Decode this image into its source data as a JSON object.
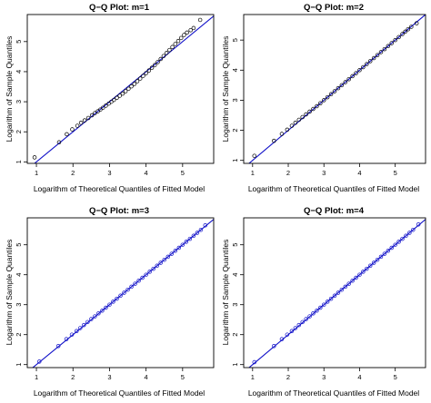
{
  "chart_data": [
    {
      "type": "scatter",
      "title": "Q−Q Plot: m=1",
      "xlabel": "Logarithm of  Theoretical Quantiles of Fitted Model",
      "ylabel": "Logarithm of  Sample Quantiles",
      "xlim": [
        0.75,
        5.85
      ],
      "ylim": [
        0.95,
        5.9
      ],
      "xticks": [
        "1",
        "2",
        "3",
        "4",
        "5"
      ],
      "yticks": [
        "1",
        "2",
        "3",
        "4",
        "5"
      ],
      "reference_line": {
        "intercept": 0,
        "slope": 1,
        "color": "#1010c8"
      },
      "point_color": "#000000",
      "points": [
        [
          0.95,
          1.15
        ],
        [
          1.62,
          1.65
        ],
        [
          1.83,
          1.92
        ],
        [
          1.98,
          2.08
        ],
        [
          2.12,
          2.2
        ],
        [
          2.22,
          2.3
        ],
        [
          2.32,
          2.38
        ],
        [
          2.42,
          2.46
        ],
        [
          2.52,
          2.55
        ],
        [
          2.6,
          2.62
        ],
        [
          2.68,
          2.68
        ],
        [
          2.75,
          2.74
        ],
        [
          2.82,
          2.8
        ],
        [
          2.9,
          2.87
        ],
        [
          2.98,
          2.94
        ],
        [
          3.05,
          3.0
        ],
        [
          3.12,
          3.06
        ],
        [
          3.2,
          3.13
        ],
        [
          3.28,
          3.2
        ],
        [
          3.36,
          3.27
        ],
        [
          3.44,
          3.35
        ],
        [
          3.52,
          3.43
        ],
        [
          3.6,
          3.51
        ],
        [
          3.68,
          3.59
        ],
        [
          3.76,
          3.68
        ],
        [
          3.84,
          3.77
        ],
        [
          3.92,
          3.86
        ],
        [
          4.0,
          3.95
        ],
        [
          4.08,
          4.04
        ],
        [
          4.16,
          4.13
        ],
        [
          4.24,
          4.22
        ],
        [
          4.32,
          4.32
        ],
        [
          4.4,
          4.42
        ],
        [
          4.48,
          4.52
        ],
        [
          4.56,
          4.62
        ],
        [
          4.64,
          4.72
        ],
        [
          4.72,
          4.82
        ],
        [
          4.8,
          4.92
        ],
        [
          4.88,
          5.02
        ],
        [
          4.96,
          5.12
        ],
        [
          5.04,
          5.22
        ],
        [
          5.12,
          5.3
        ],
        [
          5.22,
          5.38
        ],
        [
          5.3,
          5.45
        ],
        [
          5.48,
          5.72
        ]
      ]
    },
    {
      "type": "scatter",
      "title": "Q−Q Plot: m=2",
      "xlabel": "Logarithm of  Theoretical Quantiles of Fitted Model",
      "ylabel": "Logarithm of  Sample Quantiles",
      "xlim": [
        0.75,
        5.85
      ],
      "ylim": [
        0.9,
        5.85
      ],
      "xticks": [
        "1",
        "2",
        "3",
        "4",
        "5"
      ],
      "yticks": [
        "1",
        "2",
        "3",
        "4",
        "5"
      ],
      "reference_line": {
        "intercept": 0,
        "slope": 1,
        "color": "#1010c8"
      },
      "point_color": "#000000",
      "points": [
        [
          1.05,
          1.15
        ],
        [
          1.6,
          1.65
        ],
        [
          1.82,
          1.88
        ],
        [
          1.97,
          2.02
        ],
        [
          2.1,
          2.15
        ],
        [
          2.2,
          2.25
        ],
        [
          2.3,
          2.35
        ],
        [
          2.4,
          2.44
        ],
        [
          2.5,
          2.53
        ],
        [
          2.6,
          2.62
        ],
        [
          2.7,
          2.71
        ],
        [
          2.8,
          2.8
        ],
        [
          2.9,
          2.9
        ],
        [
          3.0,
          3.0
        ],
        [
          3.1,
          3.1
        ],
        [
          3.2,
          3.2
        ],
        [
          3.3,
          3.3
        ],
        [
          3.4,
          3.4
        ],
        [
          3.5,
          3.5
        ],
        [
          3.6,
          3.6
        ],
        [
          3.7,
          3.7
        ],
        [
          3.8,
          3.8
        ],
        [
          3.9,
          3.9
        ],
        [
          4.0,
          4.0
        ],
        [
          4.1,
          4.1
        ],
        [
          4.2,
          4.2
        ],
        [
          4.3,
          4.3
        ],
        [
          4.4,
          4.4
        ],
        [
          4.5,
          4.5
        ],
        [
          4.6,
          4.6
        ],
        [
          4.7,
          4.7
        ],
        [
          4.8,
          4.8
        ],
        [
          4.9,
          4.9
        ],
        [
          5.0,
          5.0
        ],
        [
          5.1,
          5.1
        ],
        [
          5.2,
          5.2
        ],
        [
          5.28,
          5.28
        ],
        [
          5.36,
          5.36
        ],
        [
          5.45,
          5.44
        ],
        [
          5.6,
          5.56
        ]
      ]
    },
    {
      "type": "scatter",
      "title": "Q−Q Plot: m=3",
      "xlabel": "Logarithm of Theoretical Quantiles of Fitted Model",
      "ylabel": "Logarithm of Sample Quantiles",
      "xlim": [
        0.75,
        5.85
      ],
      "ylim": [
        0.9,
        5.9
      ],
      "xticks": [
        "1",
        "2",
        "3",
        "4",
        "5"
      ],
      "yticks": [
        "1",
        "2",
        "3",
        "4",
        "5"
      ],
      "reference_line": {
        "intercept": 0,
        "slope": 1,
        "color": "#1010c8"
      },
      "point_color": "#1010c8",
      "points": [
        [
          1.08,
          1.1
        ],
        [
          1.6,
          1.62
        ],
        [
          1.82,
          1.85
        ],
        [
          1.97,
          2.0
        ],
        [
          2.1,
          2.12
        ],
        [
          2.2,
          2.22
        ],
        [
          2.3,
          2.32
        ],
        [
          2.4,
          2.42
        ],
        [
          2.5,
          2.52
        ],
        [
          2.6,
          2.61
        ],
        [
          2.7,
          2.71
        ],
        [
          2.8,
          2.8
        ],
        [
          2.9,
          2.9
        ],
        [
          3.0,
          3.0
        ],
        [
          3.1,
          3.1
        ],
        [
          3.2,
          3.2
        ],
        [
          3.3,
          3.3
        ],
        [
          3.4,
          3.4
        ],
        [
          3.5,
          3.5
        ],
        [
          3.6,
          3.6
        ],
        [
          3.7,
          3.7
        ],
        [
          3.8,
          3.8
        ],
        [
          3.9,
          3.9
        ],
        [
          4.0,
          4.0
        ],
        [
          4.1,
          4.1
        ],
        [
          4.2,
          4.2
        ],
        [
          4.3,
          4.3
        ],
        [
          4.4,
          4.4
        ],
        [
          4.5,
          4.5
        ],
        [
          4.6,
          4.6
        ],
        [
          4.7,
          4.7
        ],
        [
          4.8,
          4.8
        ],
        [
          4.9,
          4.9
        ],
        [
          5.0,
          5.0
        ],
        [
          5.1,
          5.1
        ],
        [
          5.2,
          5.2
        ],
        [
          5.3,
          5.3
        ],
        [
          5.4,
          5.4
        ],
        [
          5.5,
          5.5
        ],
        [
          5.62,
          5.65
        ]
      ]
    },
    {
      "type": "scatter",
      "title": "Q−Q Plot: m=4",
      "xlabel": "Logarithm of Theoretical Quantiles of Fitted Model",
      "ylabel": "Logarithm of Sample Quantiles",
      "xlim": [
        0.75,
        5.85
      ],
      "ylim": [
        0.9,
        5.9
      ],
      "xticks": [
        "1",
        "2",
        "3",
        "4",
        "5"
      ],
      "yticks": [
        "1",
        "2",
        "3",
        "4",
        "5"
      ],
      "reference_line": {
        "intercept": 0,
        "slope": 1,
        "color": "#1010c8"
      },
      "point_color": "#1010c8",
      "points": [
        [
          1.05,
          1.08
        ],
        [
          1.6,
          1.62
        ],
        [
          1.82,
          1.85
        ],
        [
          1.97,
          2.0
        ],
        [
          2.1,
          2.12
        ],
        [
          2.2,
          2.22
        ],
        [
          2.3,
          2.32
        ],
        [
          2.4,
          2.42
        ],
        [
          2.5,
          2.52
        ],
        [
          2.6,
          2.61
        ],
        [
          2.7,
          2.71
        ],
        [
          2.8,
          2.8
        ],
        [
          2.9,
          2.9
        ],
        [
          3.0,
          3.0
        ],
        [
          3.1,
          3.1
        ],
        [
          3.2,
          3.2
        ],
        [
          3.3,
          3.3
        ],
        [
          3.4,
          3.4
        ],
        [
          3.5,
          3.5
        ],
        [
          3.6,
          3.6
        ],
        [
          3.7,
          3.7
        ],
        [
          3.8,
          3.8
        ],
        [
          3.9,
          3.9
        ],
        [
          4.0,
          4.0
        ],
        [
          4.1,
          4.1
        ],
        [
          4.2,
          4.2
        ],
        [
          4.3,
          4.3
        ],
        [
          4.4,
          4.4
        ],
        [
          4.5,
          4.5
        ],
        [
          4.6,
          4.6
        ],
        [
          4.7,
          4.7
        ],
        [
          4.8,
          4.8
        ],
        [
          4.9,
          4.9
        ],
        [
          5.0,
          5.0
        ],
        [
          5.1,
          5.1
        ],
        [
          5.2,
          5.2
        ],
        [
          5.3,
          5.3
        ],
        [
          5.4,
          5.4
        ],
        [
          5.5,
          5.5
        ],
        [
          5.65,
          5.68
        ]
      ]
    }
  ]
}
